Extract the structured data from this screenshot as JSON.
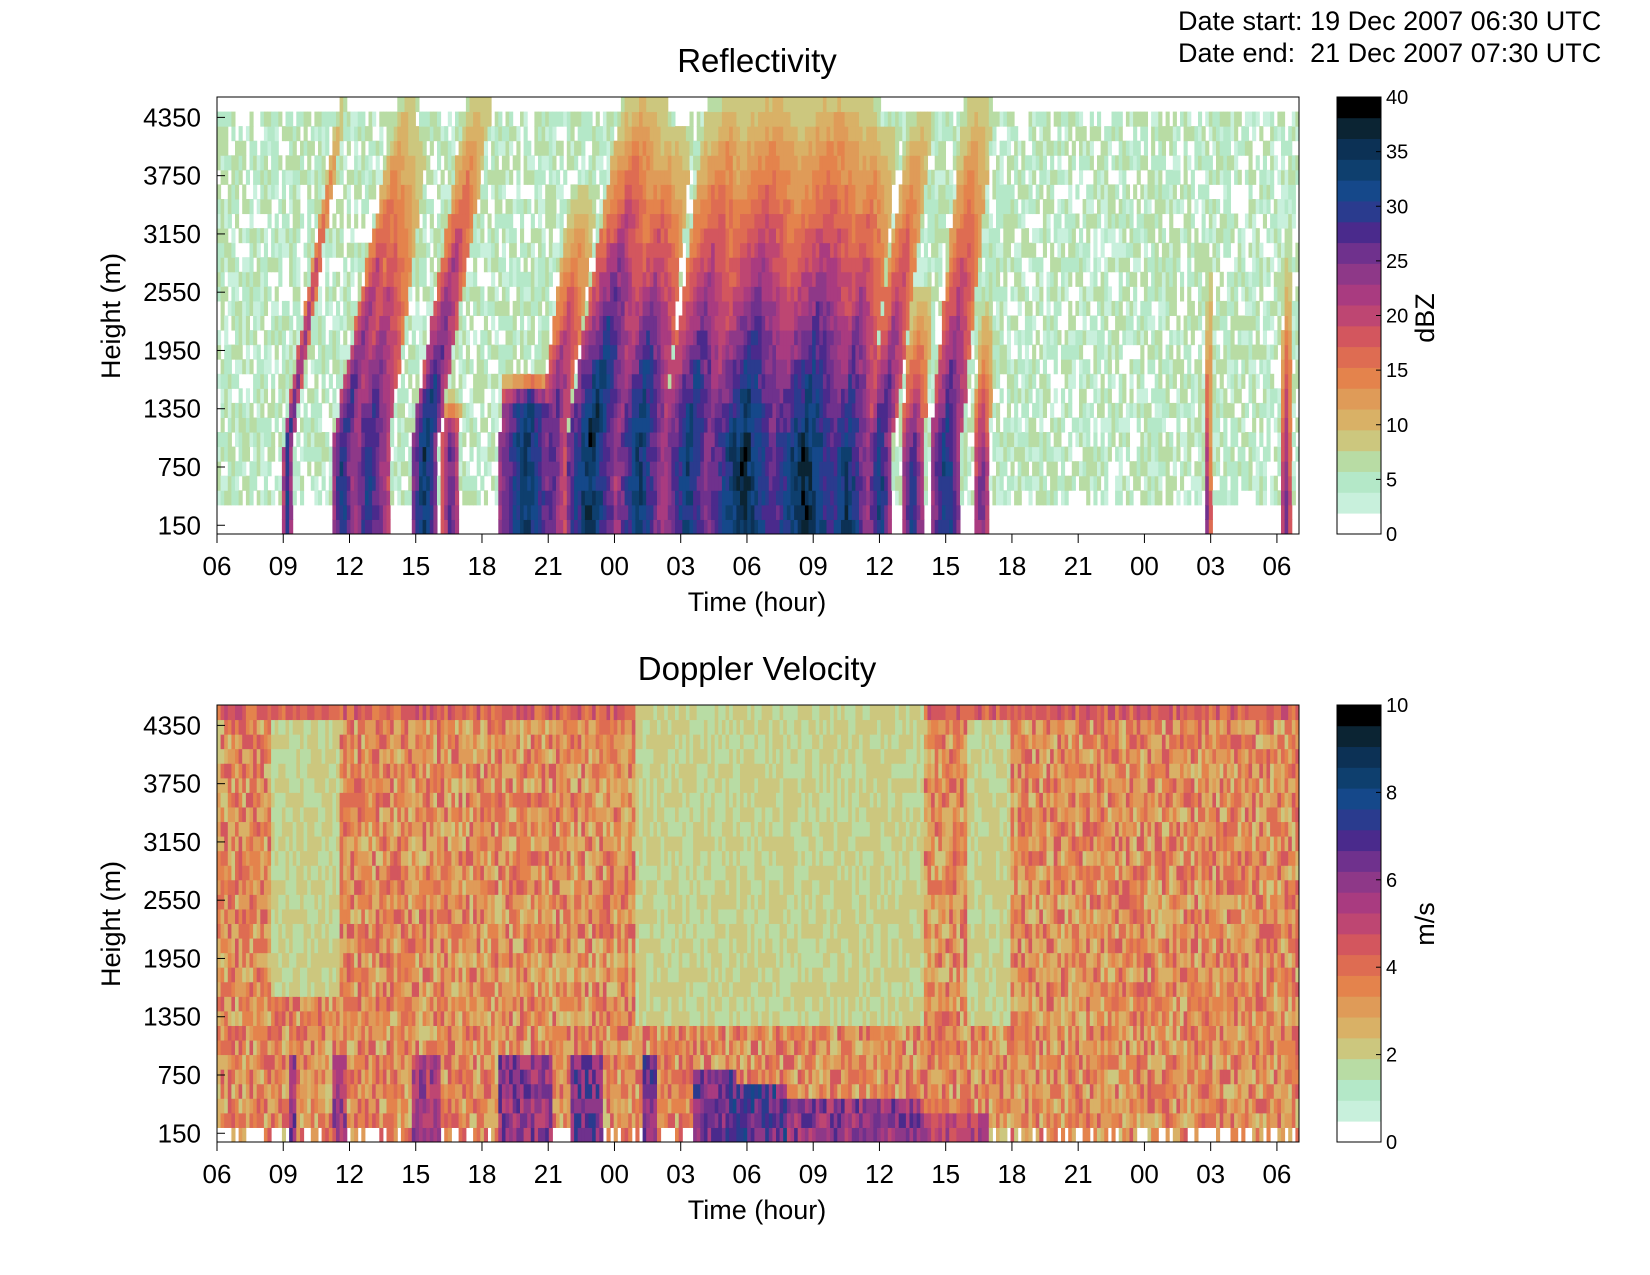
{
  "header": {
    "date_start": "Date start: 19 Dec 2007 06:30 UTC",
    "date_end": "Date end:  21 Dec 2007 07:30 UTC"
  },
  "chart_data": [
    {
      "type": "heatmap",
      "title": "Reflectivity",
      "xlabel": "Time (hour)",
      "ylabel": "Height (m)",
      "x_ticks": [
        "06",
        "09",
        "12",
        "15",
        "18",
        "21",
        "00",
        "03",
        "06",
        "09",
        "12",
        "15",
        "18",
        "21",
        "00",
        "03",
        "06"
      ],
      "xlim_hours_from_start": [
        0,
        49
      ],
      "y_ticks": [
        150,
        750,
        1350,
        1950,
        2550,
        3150,
        3750,
        4350
      ],
      "ylim": [
        60,
        4560
      ],
      "colorbar": {
        "label": "dBZ",
        "min": 0,
        "max": 40,
        "ticks": [
          0,
          5,
          10,
          15,
          20,
          25,
          30,
          35,
          40
        ]
      },
      "features": [
        {
          "start": 3.0,
          "end": 3.4,
          "top": 4500,
          "base": 1100,
          "max": 34,
          "lean": 2.5
        },
        {
          "start": 5.2,
          "end": 6.2,
          "top": 4560,
          "base": 1100,
          "max": 35,
          "lean": 3.0
        },
        {
          "start": 6.0,
          "end": 7.8,
          "top": 4300,
          "base": 1100,
          "max": 33,
          "lean": 2.0
        },
        {
          "start": 8.8,
          "end": 10.0,
          "top": 4500,
          "base": 1100,
          "max": 38,
          "lean": 2.5
        },
        {
          "start": 10.2,
          "end": 11.0,
          "top": 1500,
          "base": 1100,
          "max": 30,
          "lean": 0.3
        },
        {
          "start": 12.8,
          "end": 15.2,
          "top": 1700,
          "base": 1400,
          "max": 38,
          "lean": 1.0
        },
        {
          "start": 14.5,
          "end": 15.8,
          "top": 3700,
          "base": 1400,
          "max": 30,
          "lean": 2.0
        },
        {
          "start": 15.8,
          "end": 18.0,
          "top": 4560,
          "base": 1350,
          "max": 40,
          "lean": 2.5
        },
        {
          "start": 18.0,
          "end": 20.2,
          "top": 4200,
          "base": 1400,
          "max": 37,
          "lean": 1.5
        },
        {
          "start": 20.2,
          "end": 22.5,
          "top": 4560,
          "base": 1300,
          "max": 36,
          "lean": 2.0
        },
        {
          "start": 22.2,
          "end": 25.5,
          "top": 4560,
          "base": 1000,
          "max": 40,
          "lean": 1.5
        },
        {
          "start": 24.8,
          "end": 28.5,
          "top": 4560,
          "base": 900,
          "max": 40,
          "lean": 1.5
        },
        {
          "start": 27.5,
          "end": 29.5,
          "top": 4300,
          "base": 800,
          "max": 38,
          "lean": 1.5
        },
        {
          "start": 29.4,
          "end": 30.6,
          "top": 4400,
          "base": 800,
          "max": 36,
          "lean": 2.0
        },
        {
          "start": 31.0,
          "end": 32.0,
          "top": 2600,
          "base": 700,
          "max": 34,
          "lean": 1.0
        },
        {
          "start": 32.3,
          "end": 33.7,
          "top": 4560,
          "base": 700,
          "max": 36,
          "lean": 1.5
        },
        {
          "start": 34.3,
          "end": 35.0,
          "top": 2500,
          "base": 600,
          "max": 30,
          "lean": 0.5
        },
        {
          "start": 44.7,
          "end": 45.0,
          "top": 2900,
          "base": 300,
          "max": 28,
          "lean": 0.2
        },
        {
          "start": 48.2,
          "end": 48.6,
          "top": 3000,
          "base": 400,
          "max": 30,
          "lean": 0.2
        }
      ]
    },
    {
      "type": "heatmap",
      "title": "Doppler Velocity",
      "xlabel": "Time (hour)",
      "ylabel": "Height (m)",
      "x_ticks": [
        "06",
        "09",
        "12",
        "15",
        "18",
        "21",
        "00",
        "03",
        "06",
        "09",
        "12",
        "15",
        "18",
        "21",
        "00",
        "03",
        "06"
      ],
      "xlim_hours_from_start": [
        0,
        49
      ],
      "y_ticks": [
        150,
        750,
        1350,
        1950,
        2550,
        3150,
        3750,
        4350
      ],
      "ylim": [
        60,
        4560
      ],
      "colorbar": {
        "label": "m/s",
        "min": 0,
        "max": 10,
        "ticks": [
          0,
          2,
          4,
          6,
          8,
          10
        ]
      },
      "features": [
        {
          "start": 3.2,
          "end": 3.6,
          "top": 1000,
          "max": 7.0
        },
        {
          "start": 5.2,
          "end": 5.8,
          "top": 900,
          "max": 6.5
        },
        {
          "start": 8.8,
          "end": 10.2,
          "top": 900,
          "max": 6.5
        },
        {
          "start": 12.8,
          "end": 15.2,
          "top": 900,
          "max": 7.0
        },
        {
          "start": 16.0,
          "end": 17.5,
          "top": 1000,
          "max": 7.5
        },
        {
          "start": 19.2,
          "end": 20.0,
          "top": 1000,
          "max": 7.5
        },
        {
          "start": 21.6,
          "end": 23.5,
          "top": 800,
          "max": 7.5
        },
        {
          "start": 23.0,
          "end": 25.8,
          "top": 700,
          "max": 8.0
        },
        {
          "start": 25.8,
          "end": 31.8,
          "top": 500,
          "max": 7.0
        },
        {
          "start": 31.8,
          "end": 35.0,
          "top": 400,
          "max": 6.0
        }
      ]
    }
  ]
}
